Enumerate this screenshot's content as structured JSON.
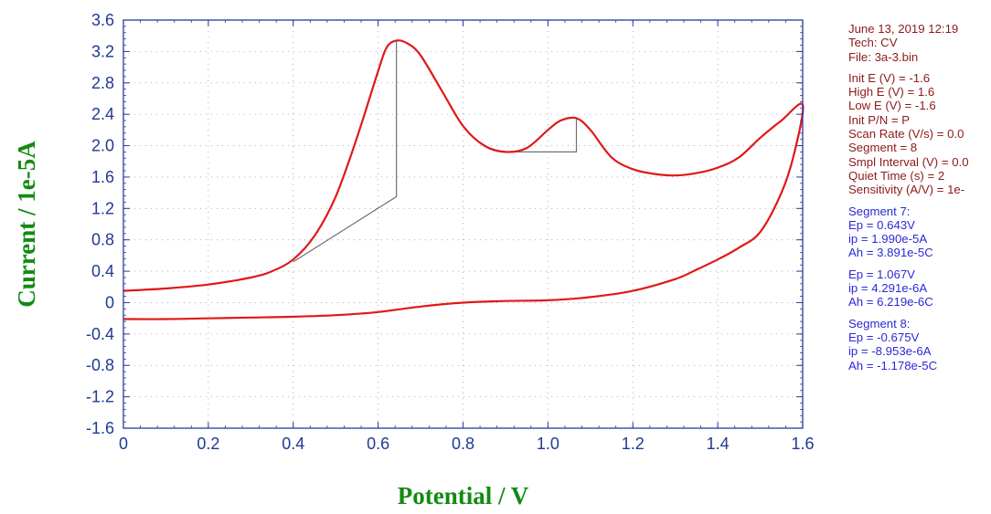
{
  "chart_data": {
    "type": "line",
    "xlabel": "Potential / V",
    "ylabel": "Current / 1e-5A",
    "xlim": [
      0,
      1.6
    ],
    "ylim": [
      -1.6,
      3.6
    ],
    "x_ticks": [
      "0",
      "0.2",
      "0.4",
      "0.6",
      "0.8",
      "1.0",
      "1.2",
      "1.4",
      "1.6"
    ],
    "y_ticks": [
      "3.6",
      "3.2",
      "2.8",
      "2.4",
      "2.0",
      "1.6",
      "1.2",
      "0.8",
      "0.4",
      "0",
      "-0.4",
      "-0.8",
      "-1.2",
      "-1.6"
    ],
    "grid": "dotted",
    "series": [
      {
        "color": "#e01818",
        "x": [
          0,
          0.1,
          0.2,
          0.3,
          0.35,
          0.4,
          0.45,
          0.5,
          0.55,
          0.6,
          0.62,
          0.643,
          0.67,
          0.7,
          0.75,
          0.8,
          0.85,
          0.9,
          0.95,
          1.0,
          1.03,
          1.067,
          1.1,
          1.15,
          1.2,
          1.25,
          1.3,
          1.35,
          1.4,
          1.45,
          1.5,
          1.55,
          1.6,
          1.58,
          1.55,
          1.5,
          1.45,
          1.4,
          1.35,
          1.3,
          1.2,
          1.1,
          1.0,
          0.9,
          0.8,
          0.7,
          0.6,
          0.5,
          0.4,
          0.3,
          0.2,
          0.1,
          0
        ],
        "y": [
          0.15,
          0.18,
          0.23,
          0.32,
          0.4,
          0.55,
          0.85,
          1.35,
          2.1,
          2.95,
          3.25,
          3.34,
          3.3,
          3.15,
          2.7,
          2.25,
          2.0,
          1.92,
          1.97,
          2.2,
          2.32,
          2.35,
          2.2,
          1.85,
          1.7,
          1.64,
          1.62,
          1.65,
          1.72,
          1.85,
          2.1,
          2.32,
          2.52,
          1.9,
          1.4,
          0.9,
          0.7,
          0.55,
          0.42,
          0.3,
          0.15,
          0.07,
          0.03,
          0.02,
          0.0,
          -0.05,
          -0.12,
          -0.16,
          -0.18,
          -0.19,
          -0.2,
          -0.21,
          -0.21
        ]
      }
    ],
    "baselines": [
      {
        "x": [
          0.4,
          0.643,
          0.643
        ],
        "y": [
          0.52,
          1.35,
          3.34
        ]
      },
      {
        "x": [
          0.9,
          1.067,
          1.067
        ],
        "y": [
          1.92,
          1.92,
          2.35
        ]
      }
    ]
  },
  "info": {
    "meta": [
      "June 13, 2019   12:19",
      "Tech: CV",
      "File: 3a-3.bin"
    ],
    "params": [
      "Init E (V) = -1.6",
      "High E (V) = 1.6",
      "Low E (V) = -1.6",
      "Init P/N = P",
      "Scan Rate (V/s) = 0.0",
      "Segment = 8",
      "Smpl Interval (V) = 0.0",
      "Quiet Time (s) = 2",
      "Sensitivity (A/V) = 1e-"
    ],
    "results": [
      {
        "lines": [
          "Segment 7:",
          "Ep = 0.643V",
          "ip = 1.990e-5A",
          "Ah = 3.891e-5C"
        ]
      },
      {
        "lines": [
          "Ep = 1.067V",
          "ip = 4.291e-6A",
          "Ah = 6.219e-6C"
        ]
      },
      {
        "lines": [
          "Segment 8:",
          "Ep = -0.675V",
          "ip = -8.953e-6A",
          "Ah = -1.178e-5C"
        ]
      }
    ]
  }
}
